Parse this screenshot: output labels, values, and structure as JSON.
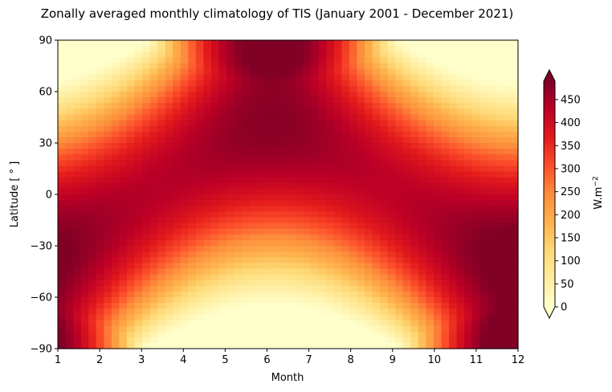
{
  "chart_data": {
    "type": "heatmap",
    "title": "Zonally averaged monthly climatology of TIS (January 2001 - December 2021)",
    "xlabel": "Month",
    "ylabel": "Latitude [ ° ]",
    "x_ticks": [
      "1",
      "2",
      "3",
      "4",
      "5",
      "6",
      "7",
      "8",
      "9",
      "10",
      "11",
      "12"
    ],
    "y_ticks": [
      "90",
      "60",
      "30",
      "0",
      "−30",
      "−60",
      "−90"
    ],
    "y_tick_values": [
      90,
      60,
      30,
      0,
      -30,
      -60,
      -90
    ],
    "xlim": [
      1,
      12
    ],
    "ylim": [
      -90,
      90
    ],
    "colormap": "YlOrRd",
    "colorbar": {
      "label": "W.m",
      "label_superscript": "−2",
      "ticks": [
        "0",
        "50",
        "100",
        "150",
        "200",
        "250",
        "300",
        "350",
        "400",
        "450"
      ],
      "tick_values": [
        0,
        50,
        100,
        150,
        200,
        250,
        300,
        350,
        400,
        450
      ],
      "range": [
        0,
        490
      ],
      "extend": "both"
    },
    "grid": false,
    "colors": [
      "#ffffcc",
      "#ffeda0",
      "#fed976",
      "#feb24c",
      "#fd8d3c",
      "#fc4e2a",
      "#e31a1c",
      "#bd0026",
      "#800026"
    ]
  }
}
